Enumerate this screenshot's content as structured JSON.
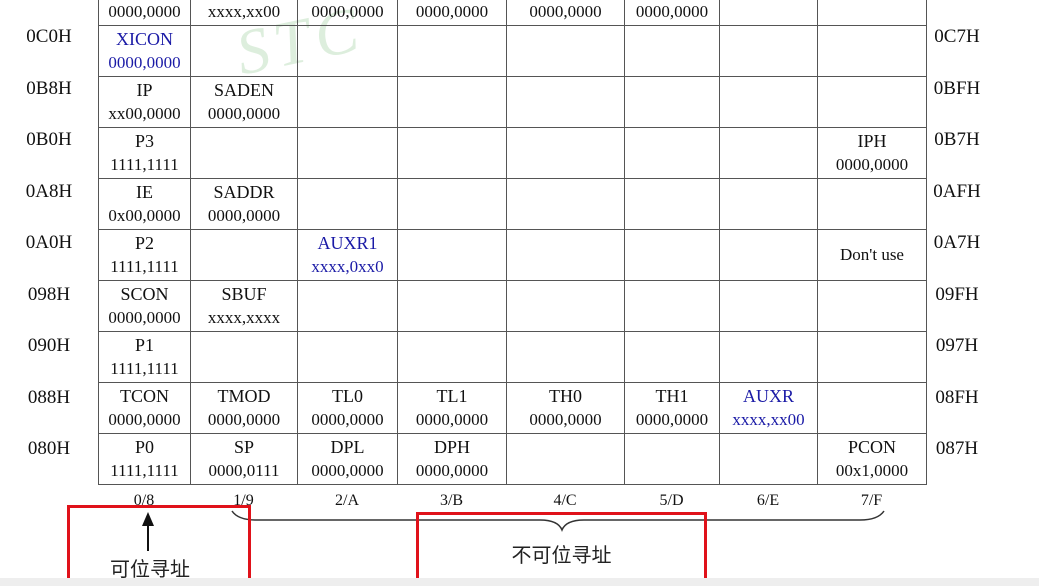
{
  "watermark": "STC",
  "left_addresses": [
    "0C0H",
    "0B8H",
    "0B0H",
    "0A8H",
    "0A0H",
    "098H",
    "090H",
    "088H",
    "080H"
  ],
  "right_addresses": [
    "0C7H",
    "0BFH",
    "0B7H",
    "0AFH",
    "0A7H",
    "09FH",
    "097H",
    "08FH",
    "087H"
  ],
  "rows": [
    {
      "cells": [
        {
          "name": "",
          "value": "0000,0000"
        },
        {
          "name": "",
          "value": "xxxx,xx00"
        },
        {
          "name": "",
          "value": "0000,0000"
        },
        {
          "name": "",
          "value": "0000,0000"
        },
        {
          "name": "",
          "value": "0000,0000"
        },
        {
          "name": "",
          "value": "0000,0000"
        },
        {
          "name": "",
          "value": ""
        },
        {
          "name": "",
          "value": ""
        }
      ]
    },
    {
      "cells": [
        {
          "name": "XICON",
          "value": "0000,0000",
          "blue": true
        },
        {
          "name": "",
          "value": ""
        },
        {
          "name": "",
          "value": ""
        },
        {
          "name": "",
          "value": ""
        },
        {
          "name": "",
          "value": ""
        },
        {
          "name": "",
          "value": ""
        },
        {
          "name": "",
          "value": ""
        },
        {
          "name": "",
          "value": ""
        }
      ]
    },
    {
      "cells": [
        {
          "name": "IP",
          "value": "xx00,0000"
        },
        {
          "name": "SADEN",
          "value": "0000,0000"
        },
        {
          "name": "",
          "value": ""
        },
        {
          "name": "",
          "value": ""
        },
        {
          "name": "",
          "value": ""
        },
        {
          "name": "",
          "value": ""
        },
        {
          "name": "",
          "value": ""
        },
        {
          "name": "",
          "value": ""
        }
      ]
    },
    {
      "cells": [
        {
          "name": "P3",
          "value": "1111,1111"
        },
        {
          "name": "",
          "value": ""
        },
        {
          "name": "",
          "value": ""
        },
        {
          "name": "",
          "value": ""
        },
        {
          "name": "",
          "value": ""
        },
        {
          "name": "",
          "value": ""
        },
        {
          "name": "",
          "value": ""
        },
        {
          "name": "IPH",
          "value": "0000,0000"
        }
      ]
    },
    {
      "cells": [
        {
          "name": "IE",
          "value": "0x00,0000"
        },
        {
          "name": "SADDR",
          "value": "0000,0000"
        },
        {
          "name": "",
          "value": ""
        },
        {
          "name": "",
          "value": ""
        },
        {
          "name": "",
          "value": ""
        },
        {
          "name": "",
          "value": ""
        },
        {
          "name": "",
          "value": ""
        },
        {
          "name": "",
          "value": ""
        }
      ]
    },
    {
      "cells": [
        {
          "name": "P2",
          "value": "1111,1111"
        },
        {
          "name": "",
          "value": ""
        },
        {
          "name": "AUXR1",
          "value": "xxxx,0xx0",
          "blue": true
        },
        {
          "name": "",
          "value": ""
        },
        {
          "name": "",
          "value": ""
        },
        {
          "name": "",
          "value": ""
        },
        {
          "name": "",
          "value": ""
        },
        {
          "note": "Don't use"
        }
      ]
    },
    {
      "cells": [
        {
          "name": "SCON",
          "value": "0000,0000"
        },
        {
          "name": "SBUF",
          "value": "xxxx,xxxx"
        },
        {
          "name": "",
          "value": ""
        },
        {
          "name": "",
          "value": ""
        },
        {
          "name": "",
          "value": ""
        },
        {
          "name": "",
          "value": ""
        },
        {
          "name": "",
          "value": ""
        },
        {
          "name": "",
          "value": ""
        }
      ]
    },
    {
      "cells": [
        {
          "name": "P1",
          "value": "1111,1111"
        },
        {
          "name": "",
          "value": ""
        },
        {
          "name": "",
          "value": ""
        },
        {
          "name": "",
          "value": ""
        },
        {
          "name": "",
          "value": ""
        },
        {
          "name": "",
          "value": ""
        },
        {
          "name": "",
          "value": ""
        },
        {
          "name": "",
          "value": ""
        }
      ]
    },
    {
      "cells": [
        {
          "name": "TCON",
          "value": "0000,0000"
        },
        {
          "name": "TMOD",
          "value": "0000,0000"
        },
        {
          "name": "TL0",
          "value": "0000,0000"
        },
        {
          "name": "TL1",
          "value": "0000,0000"
        },
        {
          "name": "TH0",
          "value": "0000,0000"
        },
        {
          "name": "TH1",
          "value": "0000,0000"
        },
        {
          "name": "AUXR",
          "value": "xxxx,xx00",
          "blue": true
        },
        {
          "name": "",
          "value": ""
        }
      ]
    },
    {
      "cells": [
        {
          "name": "P0",
          "value": "1111,1111"
        },
        {
          "name": "SP",
          "value": "0000,0111"
        },
        {
          "name": "DPL",
          "value": "0000,0000"
        },
        {
          "name": "DPH",
          "value": "0000,0000"
        },
        {
          "name": "",
          "value": ""
        },
        {
          "name": "",
          "value": ""
        },
        {
          "name": "",
          "value": ""
        },
        {
          "name": "PCON",
          "value": "00x1,0000"
        }
      ]
    }
  ],
  "column_labels": [
    "0/8",
    "1/9",
    "2/A",
    "3/B",
    "4/C",
    "5/D",
    "6/E",
    "7/F"
  ],
  "annotations": {
    "bit_addressable": "可位寻址",
    "not_bit_addressable": "不可位寻址"
  },
  "colors": {
    "register_blue": "#1a1aa6",
    "highlight_red": "#e0121a",
    "grid": "#555555"
  }
}
